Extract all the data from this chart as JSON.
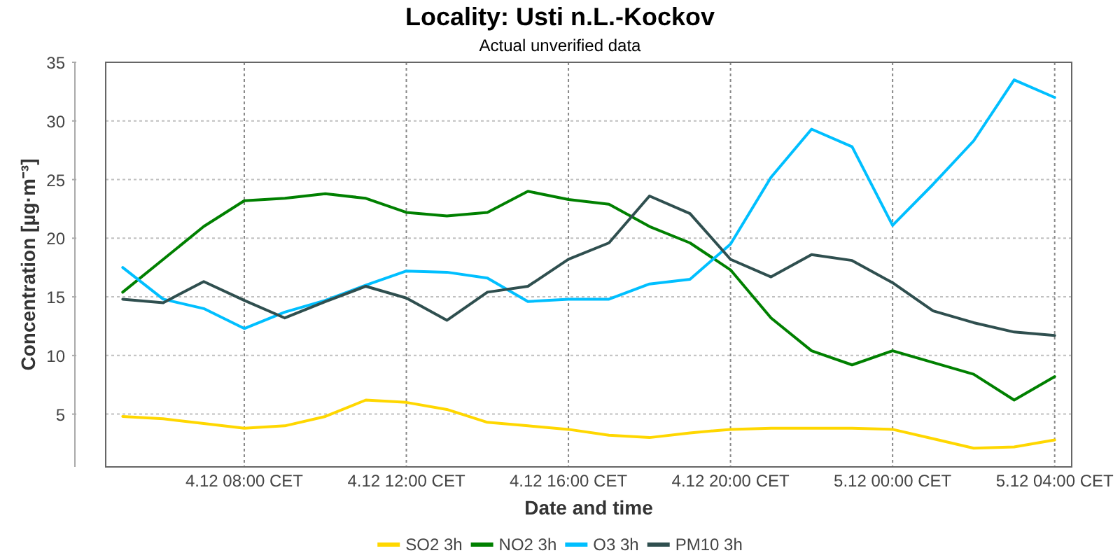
{
  "chart_data": {
    "type": "line",
    "title": "Locality: Usti n.L.-Kockov",
    "subtitle": "Actual unverified data",
    "xlabel": "Date and time",
    "ylabel": "Concentration [µg·m⁻³]",
    "categories": [
      null,
      null,
      null,
      "4.12 08:00 CET",
      null,
      null,
      null,
      "4.12 12:00 CET",
      null,
      null,
      null,
      "4.12 16:00 CET",
      null,
      null,
      null,
      "4.12 20:00 CET",
      null,
      null,
      null,
      "5.12 00:00 CET",
      null,
      null,
      null,
      "5.12 04:00 CET"
    ],
    "ylim": [
      0.5,
      35
    ],
    "yticks": [
      5,
      10,
      15,
      20,
      25,
      30,
      35
    ],
    "grid": true,
    "legend": "bottom",
    "line_style": "solid",
    "series": [
      {
        "name": "SO2 3h",
        "color": "#ffd700",
        "values": [
          4.8,
          4.6,
          4.2,
          3.8,
          4.0,
          4.8,
          6.2,
          6.0,
          5.4,
          4.3,
          4.0,
          3.7,
          3.2,
          3.0,
          3.4,
          3.7,
          3.8,
          3.8,
          3.8,
          3.7,
          2.9,
          2.1,
          2.2,
          2.8
        ]
      },
      {
        "name": "NO2 3h",
        "color": "#008000",
        "values": [
          15.4,
          18.2,
          21.0,
          23.2,
          23.4,
          23.8,
          23.4,
          22.2,
          21.9,
          22.2,
          24.0,
          23.3,
          22.9,
          21.0,
          19.6,
          17.3,
          13.2,
          10.4,
          9.2,
          10.4,
          9.4,
          8.4,
          6.2,
          8.2
        ]
      },
      {
        "name": "O3 3h",
        "color": "#00bfff",
        "values": [
          17.5,
          14.8,
          14.0,
          12.3,
          13.7,
          14.7,
          16.0,
          17.2,
          17.1,
          16.6,
          14.6,
          14.8,
          14.8,
          16.1,
          16.5,
          19.5,
          25.2,
          29.3,
          27.8,
          21.1,
          24.6,
          28.3,
          33.5,
          32.0
        ]
      },
      {
        "name": "PM10 3h",
        "color": "#2f4f4f",
        "values": [
          14.8,
          14.5,
          16.3,
          14.7,
          13.2,
          14.6,
          15.9,
          14.9,
          13.0,
          15.4,
          15.9,
          18.2,
          19.6,
          23.6,
          22.1,
          18.2,
          16.7,
          18.6,
          18.1,
          16.2,
          13.8,
          12.8,
          12.0,
          11.7
        ]
      }
    ]
  }
}
